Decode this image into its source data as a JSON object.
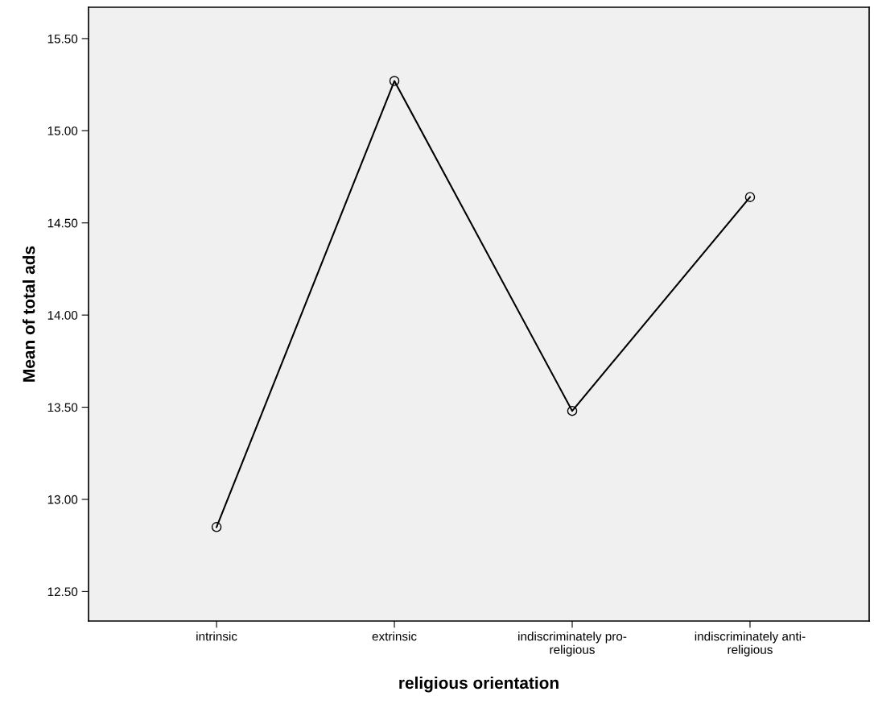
{
  "chart_data": {
    "type": "line",
    "xlabel": "religious orientation",
    "ylabel": "Mean of total ads",
    "categories": [
      "intrinsic",
      "extrinsic",
      "indiscriminately pro-\nreligious",
      "indiscriminately anti-\nreligious"
    ],
    "series": [
      {
        "color": "#000000",
        "values": [
          12.85,
          15.27,
          13.48,
          14.64
        ]
      }
    ],
    "ylim": [
      12.34,
      15.67
    ],
    "yticks": [
      {
        "value": 12.5,
        "label": "12.50"
      },
      {
        "value": 13.0,
        "label": "13.00"
      },
      {
        "value": 13.5,
        "label": "13.50"
      },
      {
        "value": 14.0,
        "label": "14.00"
      },
      {
        "value": 14.5,
        "label": "14.50"
      },
      {
        "value": 15.0,
        "label": "15.00"
      },
      {
        "value": 15.5,
        "label": "15.50"
      }
    ],
    "marker": "circle",
    "line_style": "solid",
    "grid": false,
    "legend": false
  }
}
